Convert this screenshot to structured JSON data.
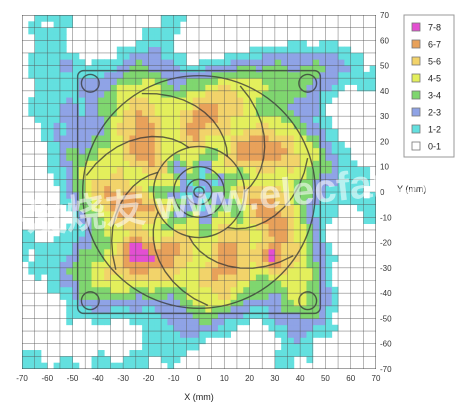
{
  "chart_data": {
    "type": "heatmap",
    "title": "",
    "xlabel": "X (mm)",
    "ylabel": "Y (mm)",
    "xlim": [
      -70,
      70
    ],
    "ylim": [
      -70,
      70
    ],
    "x_ticks": [
      -70,
      -60,
      -50,
      -40,
      -30,
      -20,
      -10,
      0,
      10,
      20,
      30,
      40,
      50,
      60,
      70
    ],
    "y_ticks": [
      70,
      60,
      50,
      40,
      30,
      20,
      10,
      0,
      -10,
      -20,
      -30,
      -40,
      -50,
      -60,
      -70
    ],
    "grid_step": 5,
    "grid": true,
    "legend_position": "top-right",
    "legend": [
      {
        "label": "7-8",
        "color": "#e34fd1"
      },
      {
        "label": "6-7",
        "color": "#e8a15a"
      },
      {
        "label": "5-6",
        "color": "#f2d36a"
      },
      {
        "label": "4-5",
        "color": "#e3ef5c"
      },
      {
        "label": "3-4",
        "color": "#7fd66f"
      },
      {
        "label": "2-3",
        "color": "#8fa3e6"
      },
      {
        "label": "1-2",
        "color": "#63e0df"
      },
      {
        "label": "0-1",
        "color": "#ffffff"
      }
    ],
    "fan_frame": {
      "x_min": -48,
      "x_max": 48,
      "y_min": -48,
      "y_max": 48
    },
    "hub_radius": 18,
    "hotspots": [
      {
        "x": -25,
        "y": -23,
        "level": "7-8"
      },
      {
        "x": 29,
        "y": -26,
        "level": "7-8"
      }
    ],
    "watermark": "电子发烧友 www.elecfans.com"
  }
}
